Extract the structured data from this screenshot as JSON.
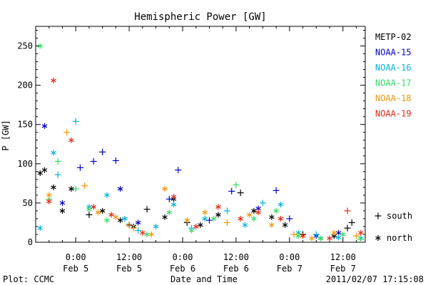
{
  "chart_data": {
    "type": "scatter",
    "title": "Hemispheric Power [GW]",
    "xlabel": "Date and Time",
    "ylabel": "P [GW]",
    "xlim": [
      "2011-02-04T15:00",
      "2011-02-07T17:00"
    ],
    "ylim": [
      0,
      275
    ],
    "y_ticks": [
      0,
      50,
      100,
      150,
      200,
      250
    ],
    "x_ticks": [
      {
        "t": "2011-02-05T00:00",
        "line1": "0:00",
        "line2": "Feb 5"
      },
      {
        "t": "2011-02-05T12:00",
        "line1": "12:00",
        "line2": "Feb 5"
      },
      {
        "t": "2011-02-06T00:00",
        "line1": "0:00",
        "line2": "Feb 6"
      },
      {
        "t": "2011-02-06T12:00",
        "line1": "12:00",
        "line2": "Feb 6"
      },
      {
        "t": "2011-02-07T00:00",
        "line1": "0:00",
        "line2": "Feb 7"
      },
      {
        "t": "2011-02-07T12:00",
        "line1": "12:00",
        "line2": "Feb 7"
      }
    ],
    "grid": false,
    "legend_position": "right",
    "markers": {
      "south": "+",
      "north": "*"
    },
    "marker_legend": [
      {
        "symbol": "+",
        "label": "south"
      },
      {
        "symbol": "*",
        "label": "north"
      }
    ],
    "series": [
      {
        "name": "METP-02",
        "color": "#000000",
        "points": [
          [
            "2011-02-04T16:00",
            88,
            "north"
          ],
          [
            "2011-02-04T17:00",
            92,
            "north"
          ],
          [
            "2011-02-04T19:00",
            70,
            "north"
          ],
          [
            "2011-02-04T21:00",
            40,
            "north"
          ],
          [
            "2011-02-04T23:00",
            68,
            "north"
          ],
          [
            "2011-02-05T03:00",
            35,
            "south"
          ],
          [
            "2011-02-05T06:00",
            40,
            "north"
          ],
          [
            "2011-02-05T10:00",
            28,
            "north"
          ],
          [
            "2011-02-05T13:00",
            20,
            "north"
          ],
          [
            "2011-02-05T16:00",
            42,
            "south"
          ],
          [
            "2011-02-05T20:00",
            32,
            "north"
          ],
          [
            "2011-02-05T22:00",
            55,
            "north"
          ],
          [
            "2011-02-06T01:00",
            25,
            "south"
          ],
          [
            "2011-02-06T04:00",
            22,
            "north"
          ],
          [
            "2011-02-06T08:00",
            35,
            "north"
          ],
          [
            "2011-02-06T13:00",
            63,
            "south"
          ],
          [
            "2011-02-06T16:00",
            40,
            "north"
          ],
          [
            "2011-02-06T20:00",
            32,
            "north"
          ],
          [
            "2011-02-06T23:00",
            22,
            "north"
          ],
          [
            "2011-02-07T03:00",
            10,
            "south"
          ],
          [
            "2011-02-07T07:00",
            5,
            "north"
          ],
          [
            "2011-02-07T10:00",
            8,
            "north"
          ],
          [
            "2011-02-07T13:00",
            18,
            "south"
          ],
          [
            "2011-02-07T14:00",
            25,
            "south"
          ]
        ]
      },
      {
        "name": "NOAA-15",
        "color": "#0000c8",
        "points": [
          [
            "2011-02-04T17:00",
            148,
            "north"
          ],
          [
            "2011-02-04T21:00",
            50,
            "north"
          ],
          [
            "2011-02-05T01:00",
            95,
            "south"
          ],
          [
            "2011-02-05T04:00",
            103,
            "south"
          ],
          [
            "2011-02-05T06:00",
            115,
            "south"
          ],
          [
            "2011-02-05T09:00",
            104,
            "south"
          ],
          [
            "2011-02-05T10:00",
            68,
            "north"
          ],
          [
            "2011-02-05T14:00",
            25,
            "north"
          ],
          [
            "2011-02-05T21:00",
            55,
            "south"
          ],
          [
            "2011-02-05T23:00",
            92,
            "south"
          ],
          [
            "2011-02-06T06:00",
            28,
            "south"
          ],
          [
            "2011-02-06T11:00",
            65,
            "south"
          ],
          [
            "2011-02-06T17:00",
            43,
            "north"
          ],
          [
            "2011-02-06T21:00",
            66,
            "south"
          ],
          [
            "2011-02-07T00:00",
            30,
            "south"
          ],
          [
            "2011-02-07T06:00",
            8,
            "north"
          ],
          [
            "2011-02-07T11:00",
            12,
            "north"
          ]
        ]
      },
      {
        "name": "NOAA-16",
        "color": "#00b4dc",
        "points": [
          [
            "2011-02-04T16:00",
            18,
            "north"
          ],
          [
            "2011-02-04T19:00",
            114,
            "north"
          ],
          [
            "2011-02-04T20:00",
            86,
            "south"
          ],
          [
            "2011-02-05T00:00",
            154,
            "south"
          ],
          [
            "2011-02-05T03:00",
            45,
            "north"
          ],
          [
            "2011-02-05T07:00",
            60,
            "north"
          ],
          [
            "2011-02-05T11:00",
            30,
            "north"
          ],
          [
            "2011-02-05T14:00",
            15,
            "south"
          ],
          [
            "2011-02-05T18:00",
            20,
            "north"
          ],
          [
            "2011-02-05T22:00",
            48,
            "north"
          ],
          [
            "2011-02-06T02:00",
            18,
            "south"
          ],
          [
            "2011-02-06T05:00",
            30,
            "north"
          ],
          [
            "2011-02-06T10:00",
            40,
            "south"
          ],
          [
            "2011-02-06T14:00",
            22,
            "north"
          ],
          [
            "2011-02-06T18:00",
            50,
            "south"
          ],
          [
            "2011-02-06T22:00",
            48,
            "north"
          ],
          [
            "2011-02-07T02:00",
            12,
            "north"
          ],
          [
            "2011-02-07T06:00",
            10,
            "south"
          ],
          [
            "2011-02-07T11:00",
            6,
            "north"
          ],
          [
            "2011-02-07T16:00",
            5,
            "north"
          ]
        ]
      },
      {
        "name": "NOAA-17",
        "color": "#32dc64",
        "points": [
          [
            "2011-02-04T16:00",
            250,
            "north"
          ],
          [
            "2011-02-04T18:00",
            55,
            "south"
          ],
          [
            "2011-02-04T20:00",
            103,
            "south"
          ],
          [
            "2011-02-05T00:00",
            68,
            "south"
          ],
          [
            "2011-02-05T03:00",
            42,
            "north"
          ],
          [
            "2011-02-05T07:00",
            28,
            "north"
          ],
          [
            "2011-02-05T12:00",
            22,
            "north"
          ],
          [
            "2011-02-05T16:00",
            10,
            "north"
          ],
          [
            "2011-02-05T21:00",
            38,
            "north"
          ],
          [
            "2011-02-06T02:00",
            15,
            "north"
          ],
          [
            "2011-02-06T07:00",
            30,
            "north"
          ],
          [
            "2011-02-06T12:00",
            73,
            "south"
          ],
          [
            "2011-02-06T16:00",
            30,
            "north"
          ],
          [
            "2011-02-06T21:00",
            40,
            "north"
          ],
          [
            "2011-02-07T02:00",
            8,
            "north"
          ],
          [
            "2011-02-07T07:00",
            5,
            "north"
          ],
          [
            "2011-02-07T12:00",
            10,
            "north"
          ],
          [
            "2011-02-07T16:00",
            4,
            "south"
          ]
        ]
      },
      {
        "name": "NOAA-18",
        "color": "#f09600",
        "points": [
          [
            "2011-02-04T18:00",
            60,
            "north"
          ],
          [
            "2011-02-04T22:00",
            140,
            "south"
          ],
          [
            "2011-02-05T02:00",
            72,
            "south"
          ],
          [
            "2011-02-05T05:00",
            38,
            "north"
          ],
          [
            "2011-02-05T09:00",
            32,
            "north"
          ],
          [
            "2011-02-05T13:00",
            18,
            "south"
          ],
          [
            "2011-02-05T17:00",
            10,
            "north"
          ],
          [
            "2011-02-05T20:00",
            68,
            "north"
          ],
          [
            "2011-02-06T01:00",
            28,
            "north"
          ],
          [
            "2011-02-06T05:00",
            38,
            "north"
          ],
          [
            "2011-02-06T10:00",
            25,
            "south"
          ],
          [
            "2011-02-06T15:00",
            35,
            "north"
          ],
          [
            "2011-02-06T20:00",
            22,
            "north"
          ],
          [
            "2011-02-07T01:00",
            10,
            "south"
          ],
          [
            "2011-02-07T05:00",
            5,
            "north"
          ],
          [
            "2011-02-07T10:00",
            12,
            "north"
          ],
          [
            "2011-02-07T15:00",
            8,
            "south"
          ]
        ]
      },
      {
        "name": "NOAA-19",
        "color": "#e62814",
        "points": [
          [
            "2011-02-04T18:00",
            52,
            "north"
          ],
          [
            "2011-02-04T19:00",
            206,
            "north"
          ],
          [
            "2011-02-04T23:00",
            130,
            "north"
          ],
          [
            "2011-02-05T04:00",
            45,
            "north"
          ],
          [
            "2011-02-05T08:00",
            35,
            "north"
          ],
          [
            "2011-02-05T12:00",
            22,
            "south"
          ],
          [
            "2011-02-05T15:00",
            12,
            "north"
          ],
          [
            "2011-02-05T22:00",
            58,
            "north"
          ],
          [
            "2011-02-06T03:00",
            20,
            "north"
          ],
          [
            "2011-02-06T08:00",
            45,
            "north"
          ],
          [
            "2011-02-06T13:00",
            30,
            "north"
          ],
          [
            "2011-02-06T17:00",
            38,
            "north"
          ],
          [
            "2011-02-06T22:00",
            30,
            "north"
          ],
          [
            "2011-02-07T03:00",
            8,
            "north"
          ],
          [
            "2011-02-07T09:00",
            5,
            "north"
          ],
          [
            "2011-02-07T13:00",
            40,
            "south"
          ],
          [
            "2011-02-07T16:00",
            12,
            "north"
          ]
        ]
      }
    ]
  },
  "footer": {
    "credit": "Plot: CCMC",
    "timestamp": "2011/02/07 17:15:08"
  }
}
